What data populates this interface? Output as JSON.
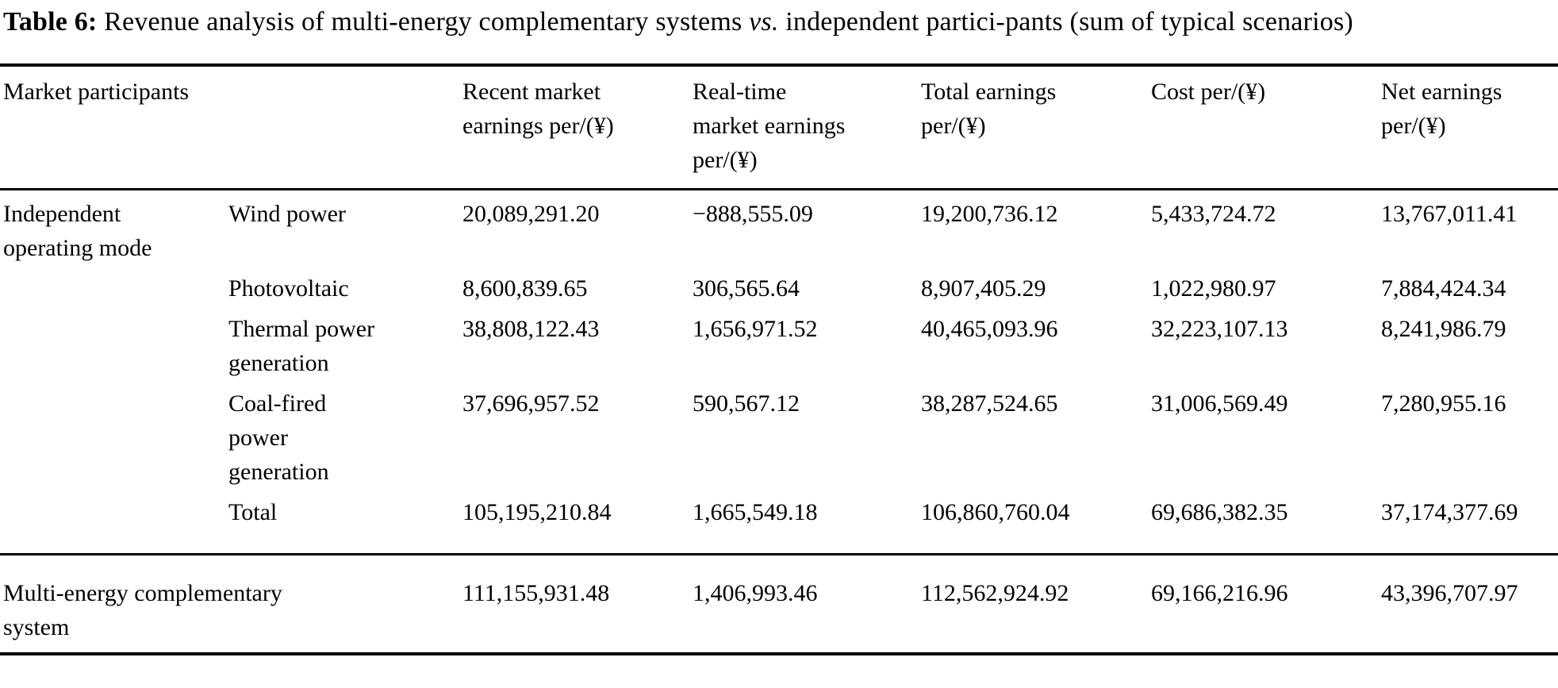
{
  "title": {
    "label": "Table 6:",
    "segment_main": "Revenue analysis of multi-energy complementary systems",
    "segment_vs": "vs.",
    "segment_rest": "independent partici-pants (sum of typical scenarios)"
  },
  "table": {
    "headers": {
      "market_participants": "Market participants",
      "recent_market_earnings": "Recent market\nearnings per/(¥)",
      "real_time_market_earnings": "Real-time\nmarket earnings\nper/(¥)",
      "total_earnings": "Total earnings\nper/(¥)",
      "cost": "Cost per/(¥)",
      "net_earnings": "Net earnings\nper/(¥)"
    },
    "rows": [
      {
        "group": "Independent\noperating mode",
        "participant": "Wind power",
        "recent_market_earnings": "20,089,291.20",
        "real_time_market_earnings": "−888,555.09",
        "total_earnings": "19,200,736.12",
        "cost": "5,433,724.72",
        "net_earnings": "13,767,011.41"
      },
      {
        "group": "",
        "participant": "Photovoltaic",
        "recent_market_earnings": "8,600,839.65",
        "real_time_market_earnings": "306,565.64",
        "total_earnings": "8,907,405.29",
        "cost": "1,022,980.97",
        "net_earnings": "7,884,424.34"
      },
      {
        "group": "",
        "participant": "Thermal power\ngeneration",
        "recent_market_earnings": "38,808,122.43",
        "real_time_market_earnings": "1,656,971.52",
        "total_earnings": "40,465,093.96",
        "cost": "32,223,107.13",
        "net_earnings": "8,241,986.79"
      },
      {
        "group": "",
        "participant": "Coal-fired\npower\ngeneration",
        "recent_market_earnings": "37,696,957.52",
        "real_time_market_earnings": "590,567.12",
        "total_earnings": "38,287,524.65",
        "cost": "31,006,569.49",
        "net_earnings": "7,280,955.16"
      },
      {
        "group": "",
        "participant": "Total",
        "recent_market_earnings": "105,195,210.84",
        "real_time_market_earnings": "1,665,549.18",
        "total_earnings": "106,860,760.04",
        "cost": "69,686,382.35",
        "net_earnings": "37,174,377.69"
      }
    ],
    "summary_row": {
      "group": "Multi-energy complementary\nsystem",
      "recent_market_earnings": "111,155,931.48",
      "real_time_market_earnings": "1,406,993.46",
      "total_earnings": "112,562,924.92",
      "cost": "69,166,216.96",
      "net_earnings": "43,396,707.97"
    }
  },
  "colors": {
    "text": "#000000",
    "background": "#ffffff",
    "rule": "#000000"
  }
}
